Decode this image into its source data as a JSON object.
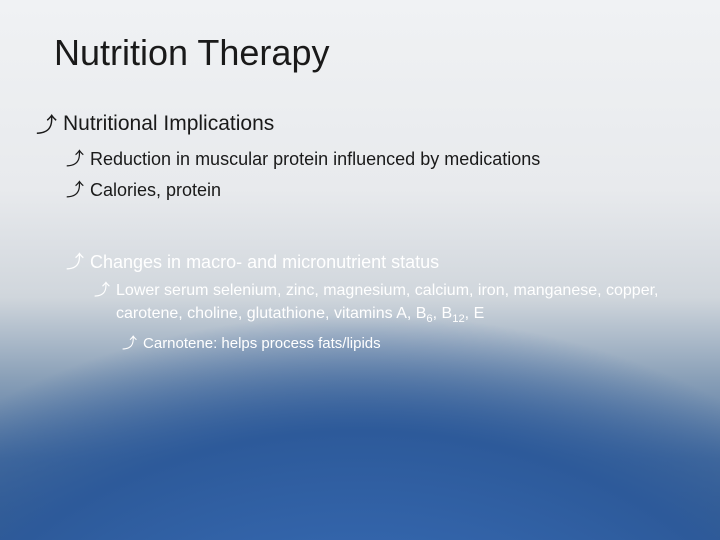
{
  "slide": {
    "title": "Nutrition Therapy",
    "title_color": "#1a1a1a",
    "title_fontsize": 36,
    "background_top": "#f0f2f4",
    "background_bottom": "#3a5f8e",
    "arc_color": "#3466ad",
    "top_text_color": "#1a1a1a",
    "bottom_text_color": "#ffffff",
    "bullet_glyph": "⤴",
    "top_section": {
      "heading": "Nutritional Implications",
      "items": [
        "Reduction in muscular protein influenced by medications",
        "Calories, protein"
      ]
    },
    "bottom_section": {
      "heading": "Changes in macro- and micronutrient status",
      "items": [
        {
          "text_html": "Lower serum selenium, zinc, magnesium, calcium, iron, manganese, copper, carotene, choline, glutathione, vitamins A, B<sub>6</sub>, B<sub>12</sub>, E",
          "sub": [
            "Carnotene: helps process fats/lipids"
          ]
        }
      ]
    }
  }
}
